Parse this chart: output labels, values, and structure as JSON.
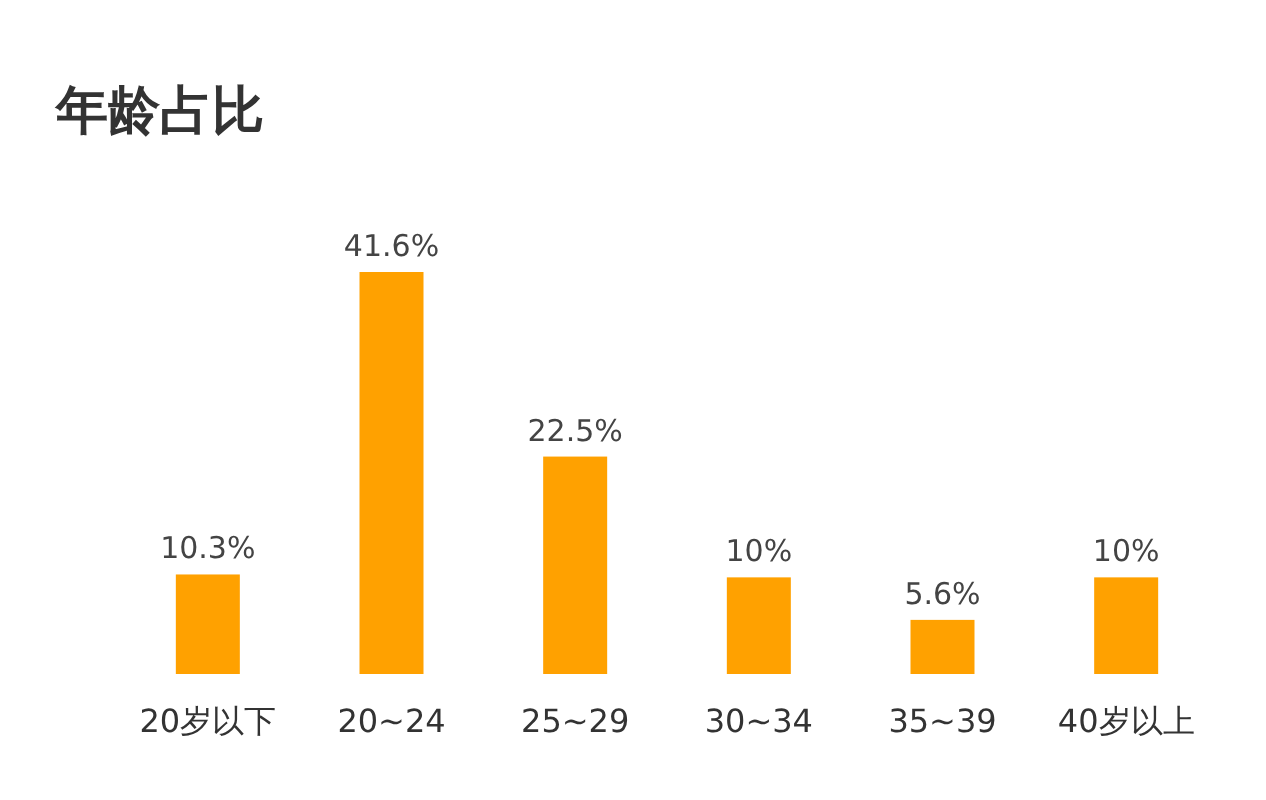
{
  "chart_data": {
    "type": "bar",
    "title": "年龄占比",
    "categories": [
      "20岁以下",
      "20~24",
      "25~29",
      "30~34",
      "35~39",
      "40岁以上"
    ],
    "values": [
      10.3,
      41.6,
      22.5,
      10,
      5.6,
      10
    ],
    "value_labels": [
      "10.3%",
      "41.6%",
      "22.5%",
      "10%",
      "5.6%",
      "10%"
    ],
    "color": "#ffa100"
  }
}
